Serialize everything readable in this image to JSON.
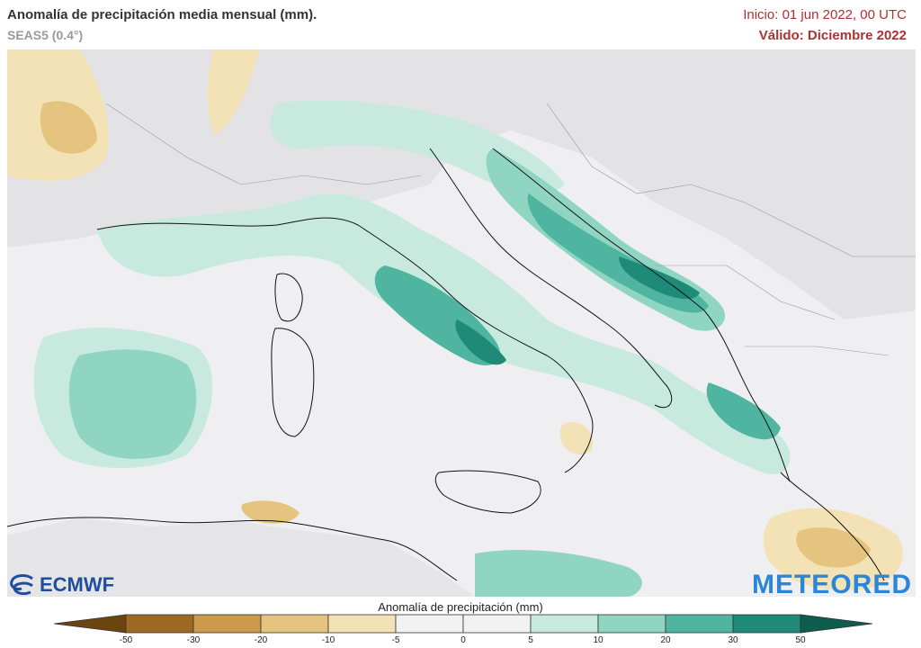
{
  "header": {
    "title": "Anomalía de precipitación media mensual (mm).",
    "subtitle": "SEAS5 (0.4°)",
    "init": "Inicio: 01 jun 2022, 00 UTC",
    "valid": "Válido: Diciembre 2022"
  },
  "logos": {
    "left": "ECMWF",
    "right": "METEORED"
  },
  "legend": {
    "title": "Anomalía de precipitación (mm)",
    "ticks": [
      "-50",
      "-30",
      "-20",
      "-10",
      "-5",
      "0",
      "5",
      "10",
      "20",
      "30",
      "50"
    ],
    "colors": [
      "#6b4410",
      "#9c6a22",
      "#cc9a4a",
      "#e4c47e",
      "#f3e2b6",
      "#f2f2f2",
      "#f2f2f2",
      "#c8eade",
      "#8fd5c2",
      "#4fb5a0",
      "#1f8a78",
      "#0d5c4e"
    ]
  }
}
